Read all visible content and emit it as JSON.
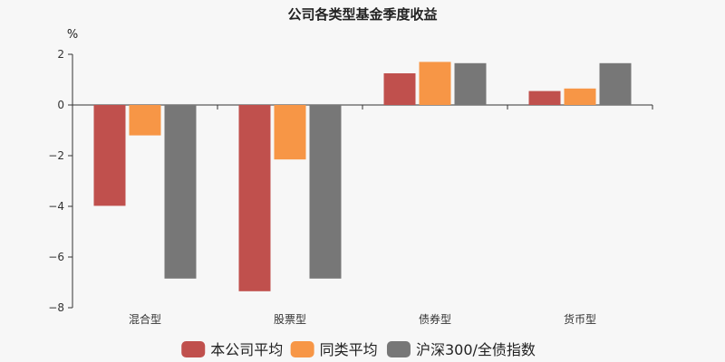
{
  "chart_data": {
    "type": "bar",
    "title": "公司各类型基金季度收益",
    "ylabel": "%",
    "xlabel": "",
    "categories": [
      "混合型",
      "股票型",
      "债券型",
      "货币型"
    ],
    "ylim": [
      -8,
      2
    ],
    "yticks": [
      2,
      0,
      -2,
      -4,
      -6,
      -8
    ],
    "ytick_labels": [
      "2",
      "0",
      "−2",
      "−4",
      "−6",
      "−8"
    ],
    "grid": false,
    "legend_position": "bottom",
    "series": [
      {
        "name": "本公司平均",
        "color": "#c0504d",
        "values": [
          -3.98,
          -7.35,
          1.25,
          0.55
        ]
      },
      {
        "name": "同类平均",
        "color": "#f79646",
        "values": [
          -1.2,
          -2.15,
          1.7,
          0.65
        ]
      },
      {
        "name": "沪深300/全债指数",
        "color": "#777777",
        "values": [
          -6.85,
          -6.85,
          1.65,
          1.65
        ]
      }
    ]
  }
}
